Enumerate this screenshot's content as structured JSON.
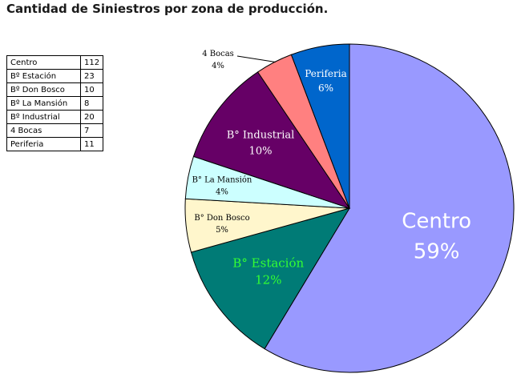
{
  "title": "Cantidad de Siniestros por zona de producción.",
  "table": {
    "rows": [
      {
        "category": "Centro",
        "value": "112"
      },
      {
        "category": "Bº Estación",
        "value": "23"
      },
      {
        "category": "Bº Don Bosco",
        "value": "10"
      },
      {
        "category": "Bº La Mansión",
        "value": "8"
      },
      {
        "category": "Bº Industrial",
        "value": "20"
      },
      {
        "category": "4 Bocas",
        "value": "7"
      },
      {
        "category": "Periferia",
        "value": "11"
      }
    ]
  },
  "chart_data": {
    "type": "pie",
    "title": "Cantidad de Siniestros por zona de producción.",
    "categories": [
      "Centro",
      "B° Estación",
      "B° Don Bosco",
      "B° La Mansión",
      "B° Industrial",
      "4 Bocas",
      "Periferia"
    ],
    "values": [
      112,
      23,
      10,
      8,
      20,
      7,
      11
    ],
    "percent_labels": [
      "59%",
      "12%",
      "5%",
      "4%",
      "10%",
      "4%",
      "6%"
    ],
    "colors": [
      "#9999ff",
      "#007b76",
      "#fff6cc",
      "#ccffff",
      "#660066",
      "#ff8080",
      "#0066cc"
    ],
    "label_colors": [
      "#ffffff",
      "#33ff33",
      "#000000",
      "#000000",
      "#ffffff",
      "#000000",
      "#ffffff"
    ],
    "legend": "none"
  }
}
